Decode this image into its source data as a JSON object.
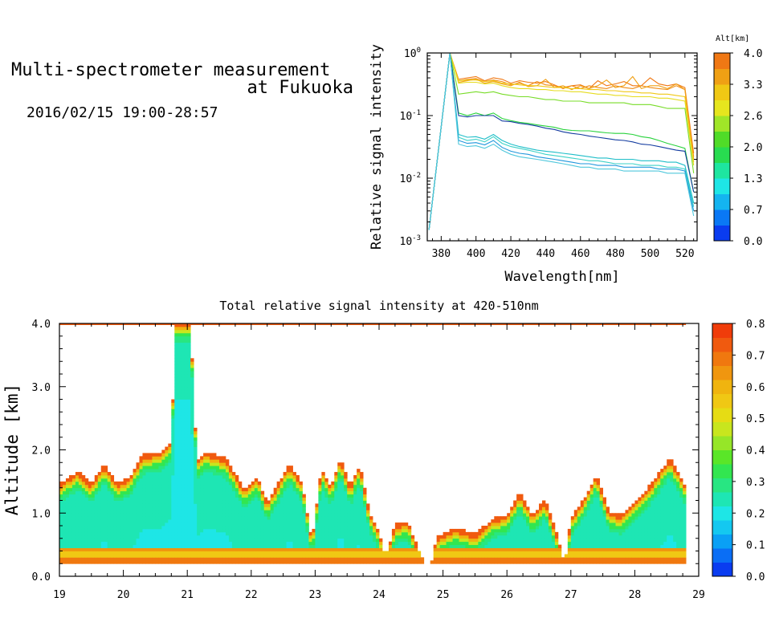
{
  "header": {
    "title_line1": "Multi-spectrometer measurement",
    "title_line2": "at Fukuoka",
    "subtitle": "2016/02/15 19:00-28:57"
  },
  "chart_data": [
    {
      "type": "line",
      "title": "",
      "xlabel": "Wavelength[nm]",
      "ylabel": "Relative signal intensity",
      "xlim": [
        372,
        527
      ],
      "ylim": [
        0.001,
        1
      ],
      "yscale": "log",
      "xticks": [
        380,
        400,
        420,
        440,
        460,
        480,
        500,
        520
      ],
      "yticks": [
        {
          "base": "10",
          "exp": "0"
        },
        {
          "base": "10",
          "exp": "-1"
        },
        {
          "base": "10",
          "exp": "-2"
        },
        {
          "base": "10",
          "exp": "-3"
        }
      ],
      "x": [
        373,
        385,
        390,
        395,
        400,
        405,
        410,
        415,
        420,
        425,
        430,
        435,
        440,
        445,
        450,
        455,
        460,
        465,
        470,
        475,
        480,
        485,
        490,
        495,
        500,
        505,
        510,
        515,
        520,
        525
      ],
      "colorbar": {
        "label": "Alt[km]",
        "ticks": [
          "0.0",
          "0.7",
          "1.3",
          "2.0",
          "2.6",
          "3.3",
          "4.0"
        ],
        "colors": [
          "#0a3cf0",
          "#0a78f5",
          "#14b4f0",
          "#1ee6e6",
          "#1ee6a0",
          "#28dc50",
          "#50dc28",
          "#a0e628",
          "#e6e61e",
          "#f0c814",
          "#f0a014",
          "#f07814"
        ]
      },
      "series": [
        {
          "color": "#f07814",
          "values": [
            0.0015,
            1.0,
            0.38,
            0.4,
            0.42,
            0.36,
            0.4,
            0.38,
            0.33,
            0.36,
            0.34,
            0.33,
            0.35,
            0.31,
            0.27,
            0.3,
            0.31,
            0.27,
            0.36,
            0.3,
            0.32,
            0.35,
            0.3,
            0.3,
            0.4,
            0.32,
            0.3,
            0.32,
            0.28,
            0.025
          ]
        },
        {
          "color": "#f08c14",
          "values": [
            0.0015,
            1.0,
            0.36,
            0.38,
            0.39,
            0.35,
            0.37,
            0.35,
            0.31,
            0.33,
            0.3,
            0.35,
            0.31,
            0.3,
            0.28,
            0.3,
            0.27,
            0.3,
            0.28,
            0.27,
            0.3,
            0.28,
            0.27,
            0.3,
            0.28,
            0.27,
            0.26,
            0.3,
            0.26,
            0.022
          ]
        },
        {
          "color": "#f0a014",
          "values": [
            0.0015,
            1.0,
            0.34,
            0.36,
            0.38,
            0.33,
            0.35,
            0.32,
            0.3,
            0.34,
            0.29,
            0.3,
            0.38,
            0.28,
            0.3,
            0.26,
            0.3,
            0.27,
            0.3,
            0.37,
            0.28,
            0.3,
            0.42,
            0.27,
            0.3,
            0.3,
            0.27,
            0.32,
            0.26,
            0.02
          ]
        },
        {
          "color": "#f0c814",
          "values": [
            0.0015,
            1.0,
            0.36,
            0.37,
            0.37,
            0.35,
            0.36,
            0.33,
            0.32,
            0.31,
            0.3,
            0.3,
            0.29,
            0.28,
            0.28,
            0.27,
            0.27,
            0.26,
            0.26,
            0.25,
            0.25,
            0.24,
            0.24,
            0.23,
            0.23,
            0.22,
            0.22,
            0.21,
            0.2,
            0.018
          ]
        },
        {
          "color": "#e6dc1e",
          "values": [
            0.0015,
            1.0,
            0.33,
            0.34,
            0.34,
            0.32,
            0.33,
            0.3,
            0.28,
            0.27,
            0.27,
            0.26,
            0.26,
            0.25,
            0.25,
            0.24,
            0.24,
            0.23,
            0.22,
            0.22,
            0.21,
            0.21,
            0.2,
            0.2,
            0.2,
            0.19,
            0.19,
            0.18,
            0.17,
            0.016
          ]
        },
        {
          "color": "#78dc28",
          "values": [
            0.0015,
            1.0,
            0.22,
            0.23,
            0.24,
            0.23,
            0.24,
            0.22,
            0.21,
            0.2,
            0.2,
            0.19,
            0.18,
            0.18,
            0.17,
            0.17,
            0.17,
            0.16,
            0.16,
            0.16,
            0.16,
            0.16,
            0.15,
            0.15,
            0.15,
            0.14,
            0.13,
            0.13,
            0.13,
            0.012
          ]
        },
        {
          "color": "#28d23c",
          "values": [
            0.0015,
            1.0,
            0.11,
            0.1,
            0.11,
            0.1,
            0.11,
            0.09,
            0.083,
            0.078,
            0.075,
            0.071,
            0.068,
            0.065,
            0.06,
            0.058,
            0.057,
            0.057,
            0.055,
            0.053,
            0.052,
            0.052,
            0.05,
            0.046,
            0.044,
            0.04,
            0.036,
            0.033,
            0.03,
            0.006
          ]
        },
        {
          "color": "#143ca0",
          "values": [
            0.0015,
            1.0,
            0.1,
            0.095,
            0.1,
            0.1,
            0.1,
            0.082,
            0.08,
            0.075,
            0.072,
            0.068,
            0.063,
            0.06,
            0.055,
            0.052,
            0.05,
            0.047,
            0.045,
            0.043,
            0.041,
            0.04,
            0.038,
            0.035,
            0.034,
            0.032,
            0.03,
            0.028,
            0.027,
            0.006
          ]
        },
        {
          "color": "#1ebec8",
          "values": [
            0.0015,
            1.0,
            0.05,
            0.045,
            0.046,
            0.042,
            0.05,
            0.04,
            0.035,
            0.032,
            0.03,
            0.028,
            0.027,
            0.026,
            0.025,
            0.024,
            0.023,
            0.022,
            0.021,
            0.021,
            0.02,
            0.02,
            0.02,
            0.019,
            0.019,
            0.019,
            0.018,
            0.018,
            0.016,
            0.004
          ]
        },
        {
          "color": "#3cd2c8",
          "values": [
            0.0015,
            1.0,
            0.045,
            0.04,
            0.042,
            0.038,
            0.046,
            0.036,
            0.032,
            0.03,
            0.028,
            0.026,
            0.024,
            0.023,
            0.022,
            0.021,
            0.02,
            0.019,
            0.019,
            0.018,
            0.017,
            0.017,
            0.017,
            0.016,
            0.016,
            0.016,
            0.015,
            0.015,
            0.014,
            0.0035
          ]
        },
        {
          "color": "#1e96dc",
          "values": [
            0.0015,
            1.0,
            0.04,
            0.036,
            0.037,
            0.034,
            0.04,
            0.031,
            0.027,
            0.025,
            0.024,
            0.022,
            0.021,
            0.02,
            0.019,
            0.018,
            0.017,
            0.017,
            0.016,
            0.016,
            0.016,
            0.015,
            0.015,
            0.015,
            0.015,
            0.014,
            0.014,
            0.014,
            0.013,
            0.003
          ]
        },
        {
          "color": "#50c8dc",
          "values": [
            0.0015,
            1.0,
            0.035,
            0.032,
            0.033,
            0.03,
            0.035,
            0.028,
            0.024,
            0.022,
            0.021,
            0.02,
            0.019,
            0.018,
            0.017,
            0.016,
            0.015,
            0.015,
            0.014,
            0.014,
            0.014,
            0.013,
            0.013,
            0.013,
            0.013,
            0.013,
            0.012,
            0.012,
            0.012,
            0.0025
          ]
        }
      ]
    },
    {
      "type": "heatmap",
      "title": "Total relative signal intensity at 420-510nm",
      "xlabel": "",
      "ylabel": "Altitude [km]",
      "xlim": [
        19,
        29
      ],
      "ylim": [
        0,
        4
      ],
      "xticks": [
        "19",
        "20",
        "21",
        "22",
        "23",
        "24",
        "25",
        "26",
        "27",
        "28",
        "29"
      ],
      "yticks": [
        "0.0",
        "1.0",
        "2.0",
        "3.0",
        "4.0"
      ],
      "colorbar": {
        "ticks": [
          "0.0",
          "0.1",
          "0.2",
          "0.3",
          "0.4",
          "0.5",
          "0.6",
          "0.7",
          "0.8"
        ],
        "colors": [
          "#0a3cf0",
          "#0a6ef5",
          "#0aa0f5",
          "#14c8f0",
          "#1ee6e6",
          "#1ee6b4",
          "#28e682",
          "#32e650",
          "#5ae628",
          "#96e628",
          "#c8e61e",
          "#e6dc14",
          "#f0c814",
          "#f0b40f",
          "#f0960f",
          "#f0780f",
          "#f05a0f",
          "#f03c0a"
        ]
      },
      "cloud_tops": [
        {
          "t": 19.0,
          "top": 1.45
        },
        {
          "t": 19.3,
          "top": 1.65
        },
        {
          "t": 19.5,
          "top": 1.45
        },
        {
          "t": 19.7,
          "top": 1.75
        },
        {
          "t": 19.9,
          "top": 1.45
        },
        {
          "t": 20.1,
          "top": 1.55
        },
        {
          "t": 20.3,
          "top": 1.9
        },
        {
          "t": 20.6,
          "top": 1.95
        },
        {
          "t": 20.75,
          "top": 2.1
        },
        {
          "t": 20.82,
          "top": 4.0
        },
        {
          "t": 21.05,
          "top": 4.0
        },
        {
          "t": 21.15,
          "top": 1.8
        },
        {
          "t": 21.3,
          "top": 1.95
        },
        {
          "t": 21.6,
          "top": 1.85
        },
        {
          "t": 21.9,
          "top": 1.35
        },
        {
          "t": 22.1,
          "top": 1.55
        },
        {
          "t": 22.25,
          "top": 1.15
        },
        {
          "t": 22.45,
          "top": 1.5
        },
        {
          "t": 22.6,
          "top": 1.75
        },
        {
          "t": 22.8,
          "top": 1.45
        },
        {
          "t": 22.95,
          "top": 0.55
        },
        {
          "t": 23.1,
          "top": 1.7
        },
        {
          "t": 23.25,
          "top": 1.4
        },
        {
          "t": 23.4,
          "top": 1.85
        },
        {
          "t": 23.55,
          "top": 1.4
        },
        {
          "t": 23.7,
          "top": 1.75
        },
        {
          "t": 23.85,
          "top": 1.0
        },
        {
          "t": 24.0,
          "top": 0.7
        },
        {
          "t": 24.1,
          "top": 0.3
        },
        {
          "t": 24.25,
          "top": 0.8
        },
        {
          "t": 24.45,
          "top": 0.85
        },
        {
          "t": 24.6,
          "top": 0.45
        },
        {
          "t": 24.78,
          "top": 0.0
        },
        {
          "t": 24.9,
          "top": 0.6
        },
        {
          "t": 25.2,
          "top": 0.75
        },
        {
          "t": 25.5,
          "top": 0.65
        },
        {
          "t": 25.8,
          "top": 0.9
        },
        {
          "t": 26.0,
          "top": 0.95
        },
        {
          "t": 26.2,
          "top": 1.3
        },
        {
          "t": 26.4,
          "top": 0.95
        },
        {
          "t": 26.6,
          "top": 1.2
        },
        {
          "t": 26.8,
          "top": 0.6
        },
        {
          "t": 26.9,
          "top": 0.15
        },
        {
          "t": 27.0,
          "top": 0.9
        },
        {
          "t": 27.2,
          "top": 1.2
        },
        {
          "t": 27.4,
          "top": 1.6
        },
        {
          "t": 27.6,
          "top": 1.0
        },
        {
          "t": 27.8,
          "top": 0.95
        },
        {
          "t": 28.1,
          "top": 1.25
        },
        {
          "t": 28.3,
          "top": 1.5
        },
        {
          "t": 28.55,
          "top": 1.85
        },
        {
          "t": 28.7,
          "top": 1.6
        },
        {
          "t": 28.8,
          "top": 1.4
        }
      ],
      "base_bands": [
        {
          "bottom": 0.2,
          "top": 0.3,
          "intensity": 0.7
        },
        {
          "bottom": 0.3,
          "top": 0.38,
          "intensity": 0.55
        },
        {
          "bottom": 0.38,
          "top": 0.45,
          "intensity": 0.65
        }
      ],
      "top_line": {
        "altitude": 4.0,
        "from": 19.0,
        "to": 28.8
      }
    }
  ]
}
